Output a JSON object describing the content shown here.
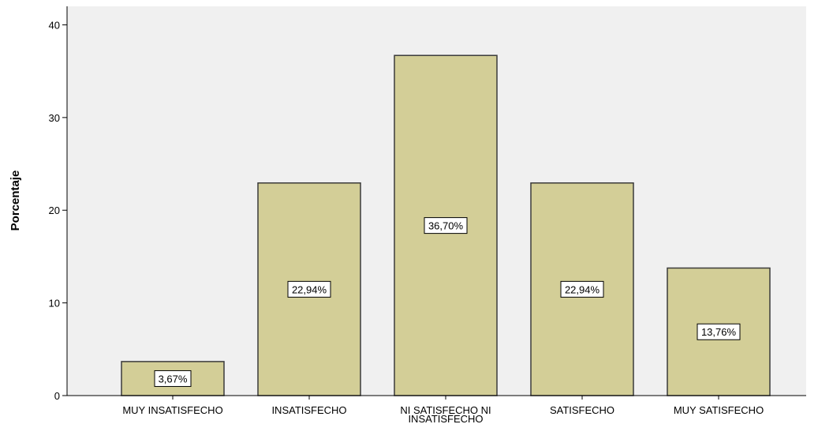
{
  "chart_data": {
    "type": "bar",
    "title": "",
    "xlabel": "",
    "ylabel": "Porcentaje",
    "ylim": [
      0,
      42
    ],
    "yticks": [
      0,
      10,
      20,
      30,
      40
    ],
    "grid": false,
    "categories": [
      [
        "MUY INSATISFECHO"
      ],
      [
        "INSATISFECHO"
      ],
      [
        "NI SATISFECHO NI",
        "INSATISFECHO"
      ],
      [
        "SATISFECHO"
      ],
      [
        "MUY SATISFECHO"
      ]
    ],
    "values": [
      3.67,
      22.94,
      36.7,
      22.94,
      13.76
    ],
    "data_labels": [
      "3,67%",
      "22,94%",
      "36,70%",
      "22,94%",
      "13,76%"
    ],
    "colors": {
      "plot_background": "#f0f0f0",
      "bar_fill": "#d3ce97",
      "bar_stroke": "#3a3a3a",
      "axis": "#000000"
    }
  }
}
